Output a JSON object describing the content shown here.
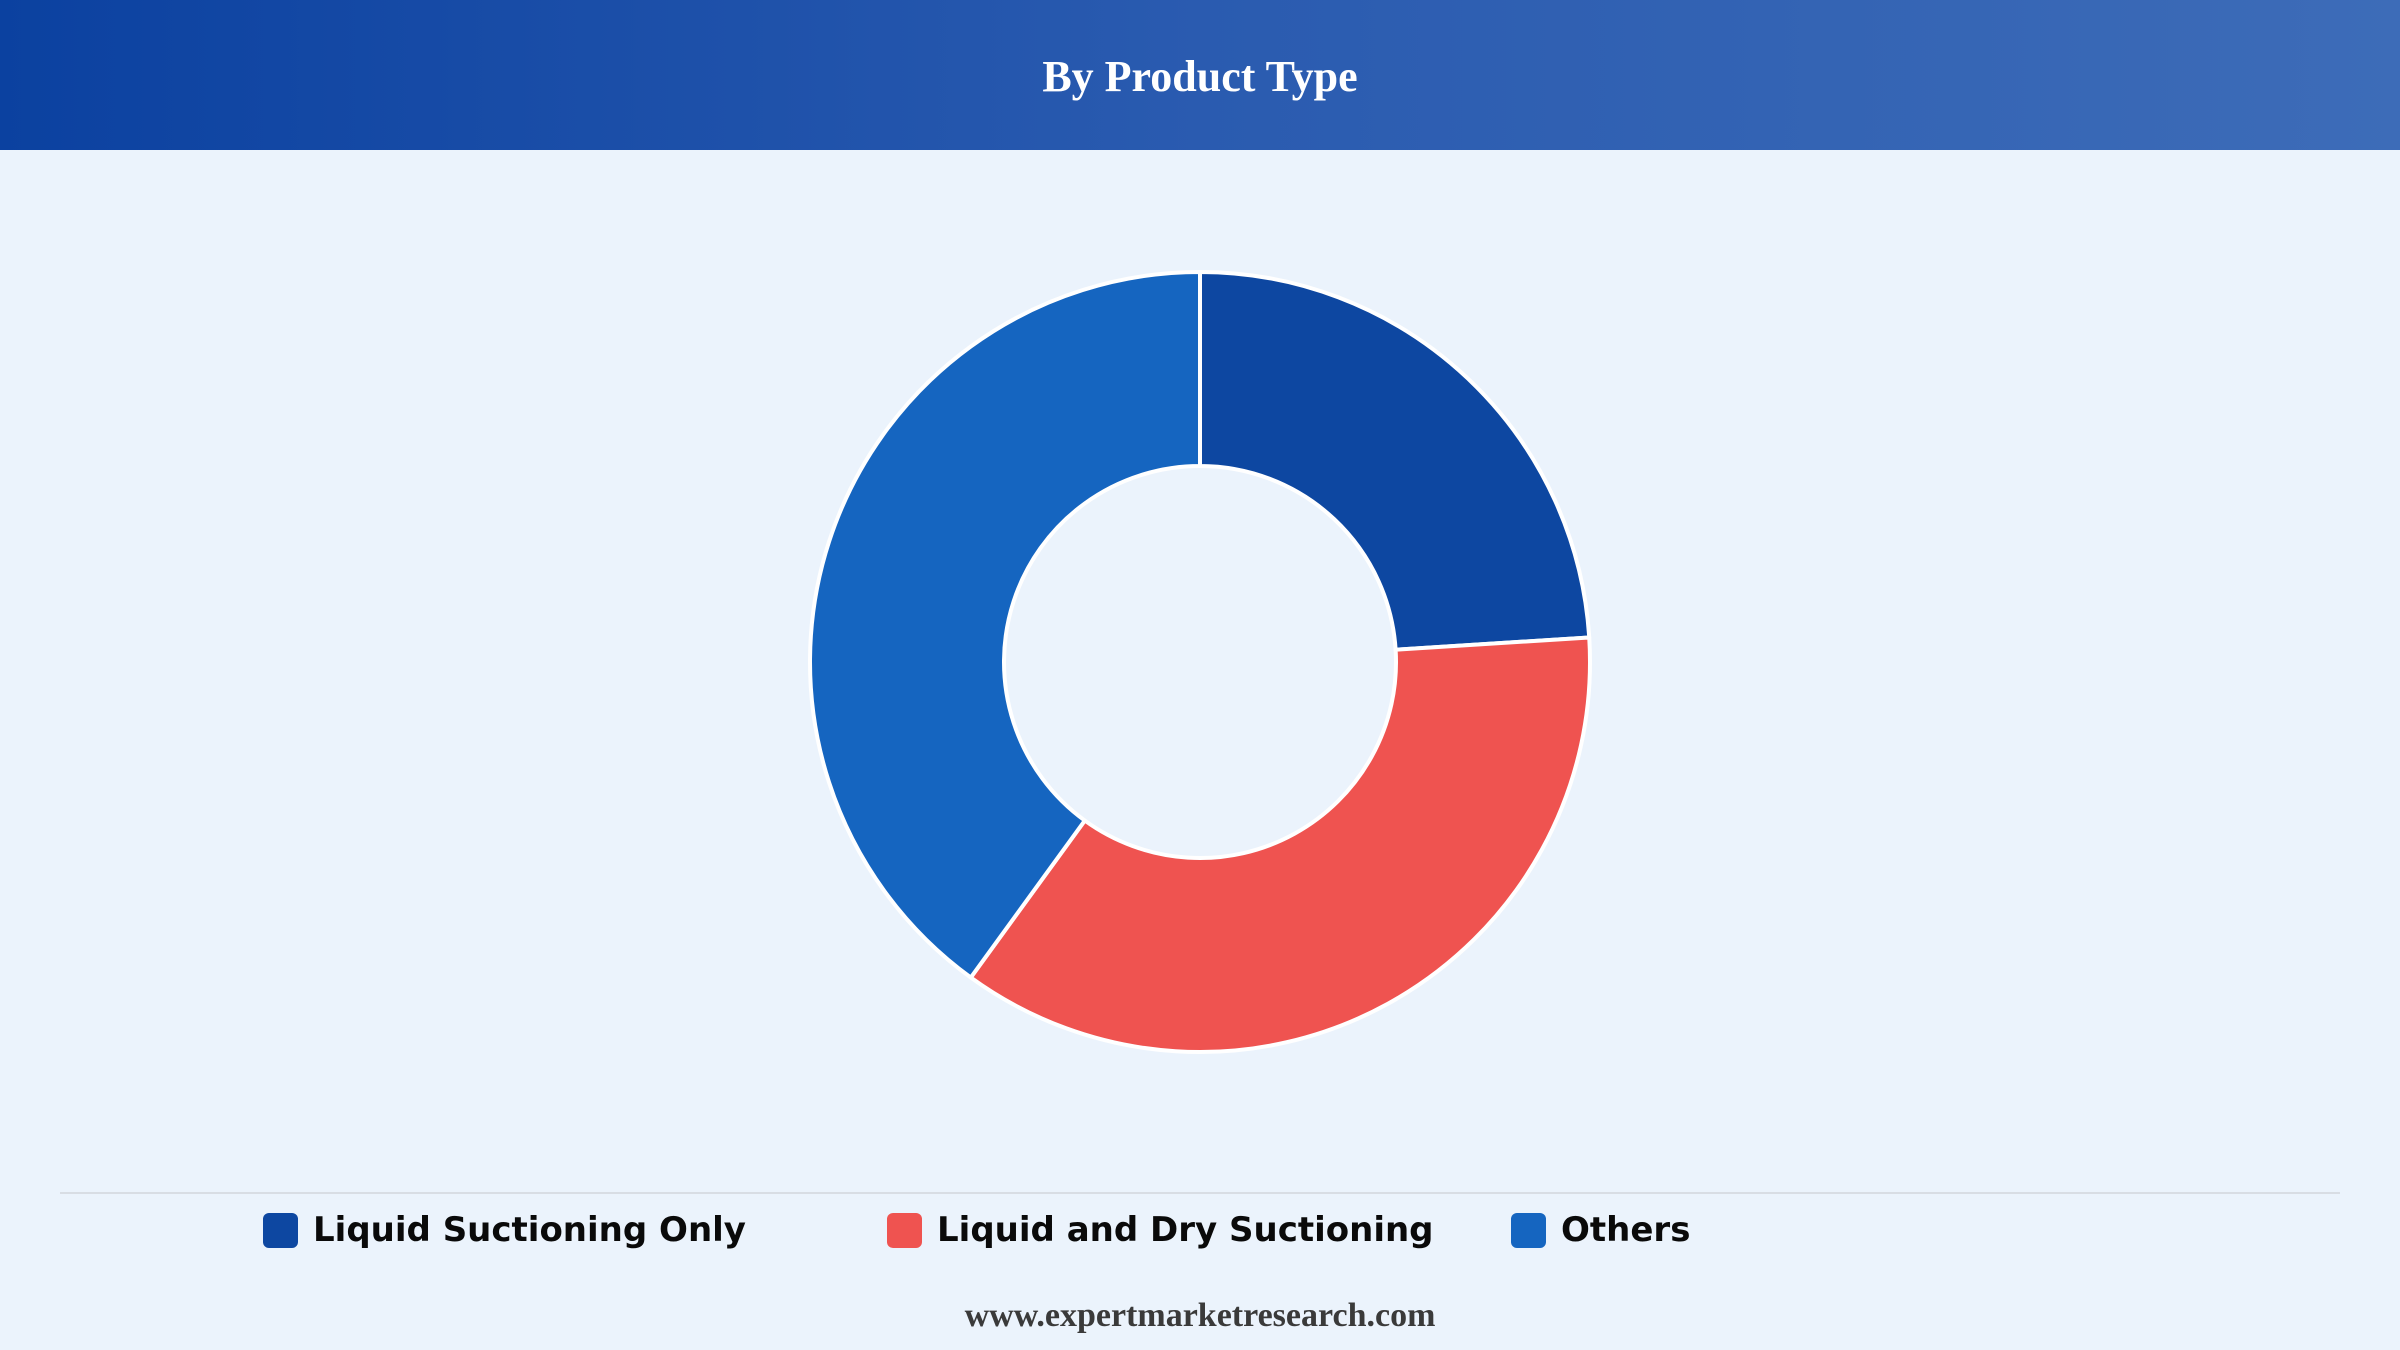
{
  "header": {
    "title": "By Product Type"
  },
  "chart_data": {
    "type": "pie",
    "title": "By Product Type",
    "donut": true,
    "categories": [
      "Liquid Suctioning Only",
      "Liquid and Dry Suctioning",
      "Others"
    ],
    "values": [
      24,
      36,
      40
    ],
    "unit": "%",
    "colors": [
      "#0d47a1",
      "#ef5350",
      "#1565c0"
    ],
    "legend_position": "bottom",
    "start_angle_deg": 0,
    "direction": "clockwise"
  },
  "legend": {
    "items": [
      {
        "label": "Liquid Suctioning Only",
        "color": "#0d47a1"
      },
      {
        "label": "Liquid and Dry Suctioning",
        "color": "#ef5350"
      },
      {
        "label": "Others",
        "color": "#1565c0"
      }
    ]
  },
  "footer": {
    "source": "www.expertmarketresearch.com"
  }
}
